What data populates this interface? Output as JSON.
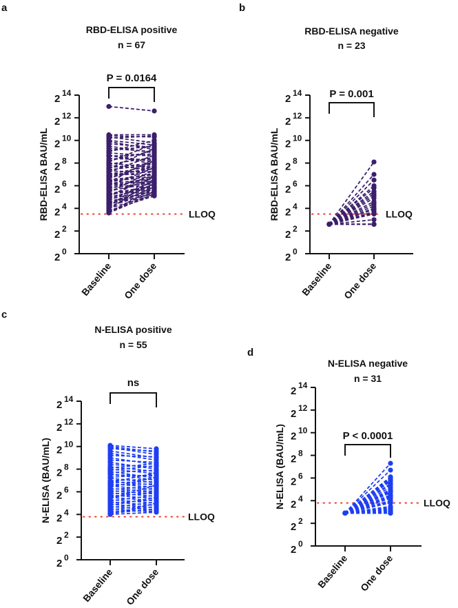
{
  "chart_data": [
    {
      "panel": "a",
      "type": "line",
      "title": "RBD-ELISA positive",
      "subtitle": "n = 67",
      "ylabel": "RBD-ELISA BAU/mL",
      "y_scale": "log2",
      "ytick_base": "2",
      "yticks": [
        "0",
        "2",
        "4",
        "6",
        "8",
        "10",
        "12",
        "14"
      ],
      "ylim_log2": [
        0,
        14
      ],
      "categories": [
        "Baseline",
        "One dose"
      ],
      "annotation": "P = 0.0164",
      "lloq_label": "LLOQ",
      "lloq_log2": 3.5,
      "color": "#3b1f6b",
      "series": [
        {
          "name": "Baseline",
          "log2_values": [
            13.0,
            10.5,
            10.4,
            10.3,
            10.2,
            10.0,
            9.9,
            9.7,
            9.5,
            9.3,
            9.1,
            8.9,
            8.7,
            8.7,
            8.6,
            8.4,
            8.2,
            8.0,
            7.9,
            7.8,
            7.6,
            7.4,
            7.3,
            7.2,
            7.1,
            7.0,
            6.9,
            6.8,
            6.7,
            6.6,
            6.5,
            6.4,
            6.3,
            6.2,
            6.1,
            6.0,
            5.9,
            5.8,
            5.7,
            5.6,
            5.5,
            5.4,
            5.3,
            5.2,
            5.1,
            5.0,
            4.9,
            4.8,
            4.7,
            4.6,
            4.5,
            4.4,
            4.3,
            4.2,
            4.1,
            4.0,
            3.9,
            3.8,
            3.7,
            3.6,
            3.6,
            4.2,
            5.0,
            6.3,
            7.5,
            8.1,
            9.0
          ]
        },
        {
          "name": "One dose",
          "log2_values": [
            12.6,
            10.5,
            10.3,
            9.8,
            10.4,
            9.6,
            9.2,
            9.4,
            8.9,
            9.0,
            9.5,
            8.6,
            8.1,
            7.9,
            8.8,
            8.3,
            9.1,
            7.6,
            8.5,
            7.4,
            8.0,
            7.9,
            7.2,
            8.7,
            6.9,
            7.8,
            7.5,
            7.3,
            7.7,
            8.2,
            7.0,
            6.8,
            7.1,
            6.6,
            6.4,
            7.6,
            6.7,
            6.3,
            6.9,
            6.2,
            6.5,
            7.4,
            6.0,
            5.9,
            6.8,
            5.8,
            6.1,
            5.7,
            6.4,
            5.6,
            5.5,
            5.3,
            6.2,
            5.4,
            5.9,
            5.2,
            6.6,
            5.1,
            5.5,
            5.3,
            5.8,
            6.9,
            7.2,
            8.4,
            9.3,
            9.7,
            10.0
          ]
        }
      ]
    },
    {
      "panel": "b",
      "type": "line",
      "title": "RBD-ELISA negative",
      "subtitle": "n = 23",
      "ylabel": "RBD-ELISA BAU/mL",
      "y_scale": "log2",
      "ytick_base": "2",
      "yticks": [
        "0",
        "2",
        "4",
        "6",
        "8",
        "10",
        "12",
        "14"
      ],
      "ylim_log2": [
        0,
        14
      ],
      "categories": [
        "Baseline",
        "One dose"
      ],
      "annotation": "P = 0.001",
      "lloq_label": "LLOQ",
      "lloq_log2": 3.5,
      "color": "#3b1f6b",
      "series": [
        {
          "name": "Baseline",
          "log2_values": [
            2.6,
            2.6,
            2.6,
            2.6,
            2.6,
            2.6,
            2.6,
            2.6,
            2.6,
            2.6,
            2.6,
            2.6,
            2.6,
            2.6,
            2.6,
            2.6,
            2.6,
            2.6,
            2.6,
            2.6,
            2.6,
            2.6,
            2.6
          ]
        },
        {
          "name": "One dose",
          "log2_values": [
            8.1,
            7.0,
            6.5,
            6.0,
            5.8,
            5.5,
            5.3,
            5.1,
            4.9,
            4.6,
            4.4,
            4.2,
            4.0,
            3.9,
            3.7,
            3.6,
            3.5,
            3.0,
            2.6,
            2.6,
            2.6,
            2.6,
            2.6
          ]
        }
      ]
    },
    {
      "panel": "c",
      "type": "line",
      "title": "N-ELISA positive",
      "subtitle": "n = 55",
      "ylabel": "N-ELISA (BAU/mL)",
      "y_scale": "log2",
      "ytick_base": "2",
      "yticks": [
        "0",
        "2",
        "4",
        "6",
        "8",
        "10",
        "12",
        "14"
      ],
      "ylim_log2": [
        0,
        14
      ],
      "categories": [
        "Baseline",
        "One dose"
      ],
      "annotation": "ns",
      "lloq_label": "LLOQ",
      "lloq_log2": 3.8,
      "color": "#1f3ff2",
      "series": [
        {
          "name": "Baseline",
          "log2_values": [
            10.1,
            10.0,
            9.9,
            9.8,
            9.6,
            9.4,
            9.2,
            9.0,
            8.8,
            8.6,
            8.4,
            8.2,
            8.0,
            7.9,
            7.8,
            7.7,
            7.6,
            7.5,
            7.3,
            7.2,
            7.0,
            6.9,
            6.8,
            6.7,
            6.6,
            6.5,
            6.4,
            6.3,
            6.2,
            6.1,
            6.0,
            5.9,
            5.8,
            5.7,
            5.6,
            5.5,
            5.4,
            5.3,
            5.2,
            5.1,
            5.0,
            4.9,
            4.8,
            4.7,
            4.6,
            4.5,
            4.4,
            4.3,
            4.2,
            4.1,
            4.0,
            4.0,
            5.5,
            6.8,
            8.1
          ]
        },
        {
          "name": "One dose",
          "log2_values": [
            9.8,
            9.5,
            9.3,
            9.6,
            9.0,
            8.8,
            9.1,
            8.4,
            8.6,
            8.0,
            8.2,
            7.8,
            7.6,
            8.3,
            7.2,
            7.9,
            7.0,
            7.4,
            7.5,
            6.8,
            7.1,
            6.6,
            6.9,
            6.4,
            6.7,
            6.2,
            7.3,
            6.0,
            6.5,
            5.8,
            6.3,
            5.6,
            6.1,
            5.4,
            5.9,
            5.2,
            6.6,
            5.0,
            5.7,
            4.8,
            5.3,
            4.6,
            5.5,
            4.4,
            5.1,
            4.2,
            4.9,
            4.3,
            4.7,
            4.5,
            4.2,
            5.0,
            6.0,
            7.7,
            8.5
          ]
        }
      ]
    },
    {
      "panel": "d",
      "type": "line",
      "title": "N-ELISA negative",
      "subtitle": "n = 31",
      "ylabel": "N-ELISA (BAU/mL)",
      "y_scale": "log2",
      "ytick_base": "2",
      "yticks": [
        "0",
        "2",
        "4",
        "6",
        "8",
        "10",
        "12",
        "14"
      ],
      "ylim_log2": [
        0,
        14
      ],
      "categories": [
        "Baseline",
        "One dose"
      ],
      "annotation": "P < 0.0001",
      "lloq_label": "LLOQ",
      "lloq_log2": 3.8,
      "color": "#1f3ff2",
      "series": [
        {
          "name": "Baseline",
          "log2_values": [
            2.9,
            2.9,
            2.9,
            2.9,
            2.9,
            2.9,
            2.9,
            2.9,
            2.9,
            2.9,
            2.9,
            2.9,
            2.9,
            2.9,
            2.9,
            2.9,
            2.9,
            2.9,
            2.9,
            2.9,
            2.9,
            2.9,
            2.9,
            2.9,
            2.9,
            2.9,
            2.9,
            2.9,
            2.9,
            2.9,
            2.9
          ]
        },
        {
          "name": "One dose",
          "log2_values": [
            7.3,
            6.7,
            6.1,
            6.0,
            5.9,
            5.8,
            5.7,
            5.5,
            5.4,
            5.2,
            5.0,
            4.9,
            4.8,
            4.7,
            4.5,
            4.4,
            4.3,
            4.2,
            4.0,
            3.9,
            3.8,
            3.5,
            3.4,
            3.3,
            3.2,
            3.1,
            3.0,
            2.9,
            2.9,
            2.9,
            2.9
          ]
        }
      ]
    }
  ]
}
